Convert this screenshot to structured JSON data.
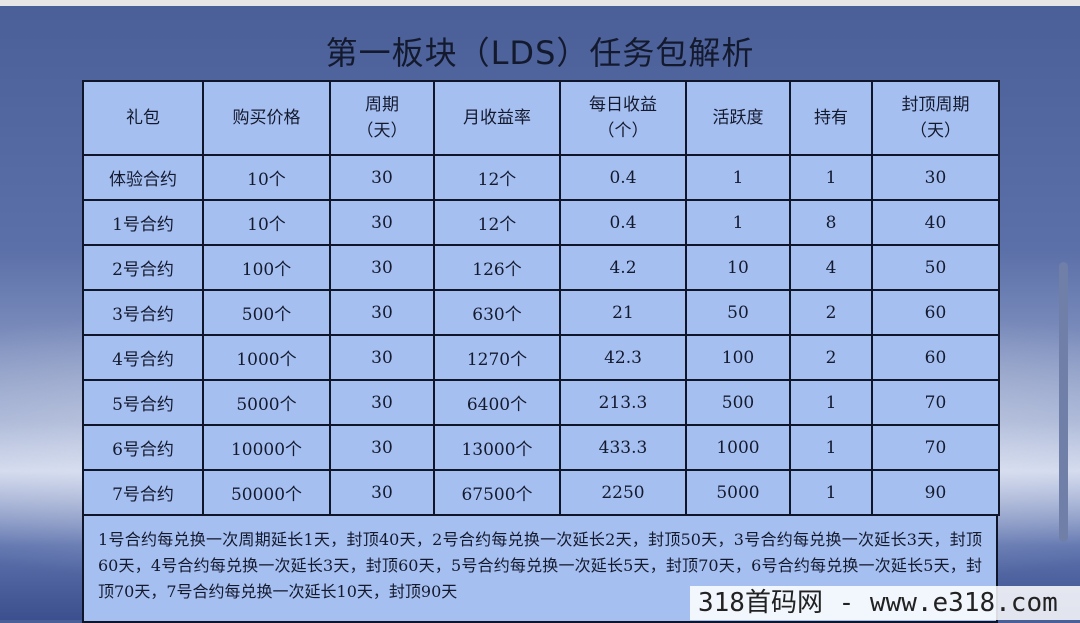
{
  "title": "第一板块（LDS）任务包解析",
  "table": {
    "headers": [
      "礼包",
      "购买价格",
      "周期\n（天）",
      "月收益率",
      "每日收益\n（个）",
      "活跃度",
      "持有",
      "封顶周期\n（天）"
    ],
    "rows": [
      [
        "体验合约",
        "10个",
        "30",
        "12个",
        "0.4",
        "1",
        "1",
        "30"
      ],
      [
        "1号合约",
        "10个",
        "30",
        "12个",
        "0.4",
        "1",
        "8",
        "40"
      ],
      [
        "2号合约",
        "100个",
        "30",
        "126个",
        "4.2",
        "10",
        "4",
        "50"
      ],
      [
        "3号合约",
        "500个",
        "30",
        "630个",
        "21",
        "50",
        "2",
        "60"
      ],
      [
        "4号合约",
        "1000个",
        "30",
        "1270个",
        "42.3",
        "100",
        "2",
        "60"
      ],
      [
        "5号合约",
        "5000个",
        "30",
        "6400个",
        "213.3",
        "500",
        "1",
        "70"
      ],
      [
        "6号合约",
        "10000个",
        "30",
        "13000个",
        "433.3",
        "1000",
        "1",
        "70"
      ],
      [
        "7号合约",
        "50000个",
        "30",
        "67500个",
        "2250",
        "5000",
        "1",
        "90"
      ]
    ]
  },
  "note": "1号合约每兑换一次周期延长1天，封顶40天，2号合约每兑换一次延长2天，封顶50天，3号合约每兑换一次延长3天，封顶60天，4号合约每兑换一次延长3天，封顶60天，5号合约每兑换一次延长5天，封顶70天，6号合约每兑换一次延长5天，封顶70天，7号合约每兑换一次延长10天，封顶90天",
  "watermark": "318首码网 - www.e318.com"
}
